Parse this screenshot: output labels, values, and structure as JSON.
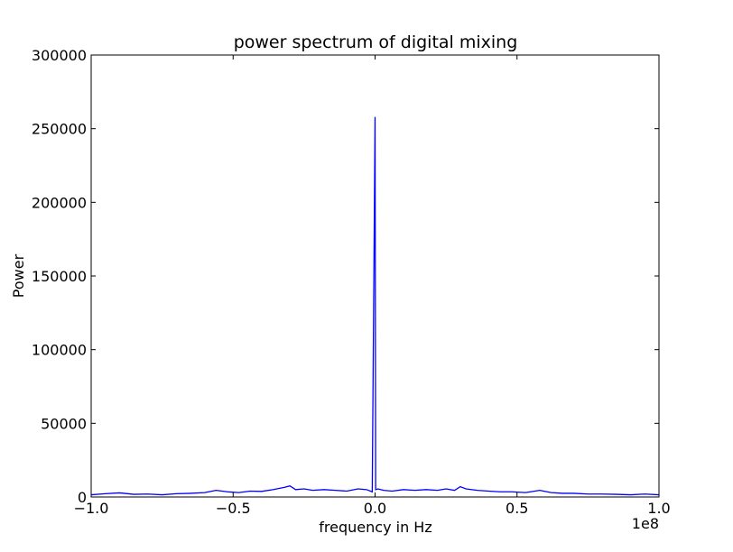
{
  "chart_data": {
    "type": "line",
    "title": "power spectrum of digital mixing",
    "xlabel": "frequency in Hz",
    "ylabel": "Power",
    "x_offset_label": "1e8",
    "xlim": [
      -1.0,
      1.0
    ],
    "ylim": [
      0,
      300000
    ],
    "x_ticks": [
      -1.0,
      -0.5,
      0.0,
      0.5,
      1.0
    ],
    "x_tick_labels": [
      "−1.0",
      "−0.5",
      "0.0",
      "0.5",
      "1.0"
    ],
    "y_ticks": [
      0,
      50000,
      100000,
      150000,
      200000,
      250000,
      300000
    ],
    "y_tick_labels": [
      "0",
      "50000",
      "100000",
      "150000",
      "200000",
      "250000",
      "300000"
    ],
    "grid": false,
    "series": [
      {
        "color": "#0000ff",
        "x": [
          -1.0,
          -0.95,
          -0.9,
          -0.85,
          -0.8,
          -0.75,
          -0.7,
          -0.65,
          -0.6,
          -0.56,
          -0.52,
          -0.48,
          -0.44,
          -0.4,
          -0.36,
          -0.32,
          -0.3,
          -0.28,
          -0.25,
          -0.22,
          -0.18,
          -0.14,
          -0.1,
          -0.06,
          -0.03,
          -0.01,
          0.0,
          0.002,
          0.01,
          0.03,
          0.06,
          0.1,
          0.14,
          0.18,
          0.22,
          0.25,
          0.28,
          0.3,
          0.32,
          0.36,
          0.4,
          0.44,
          0.48,
          0.53,
          0.58,
          0.62,
          0.66,
          0.7,
          0.75,
          0.8,
          0.85,
          0.9,
          0.95,
          1.0
        ],
        "y": [
          1500,
          2200,
          2800,
          1800,
          2000,
          1500,
          2200,
          2500,
          3000,
          4500,
          3500,
          3000,
          4000,
          3800,
          5000,
          6500,
          7500,
          5000,
          5500,
          4500,
          5000,
          4500,
          4000,
          5500,
          5000,
          3500,
          258000,
          5000,
          5500,
          4500,
          4000,
          5000,
          4500,
          5000,
          4500,
          5500,
          4500,
          7000,
          5500,
          4500,
          4000,
          3500,
          3500,
          3000,
          4500,
          3000,
          2500,
          2500,
          2000,
          2000,
          1800,
          1500,
          2000,
          1500
        ]
      }
    ]
  }
}
